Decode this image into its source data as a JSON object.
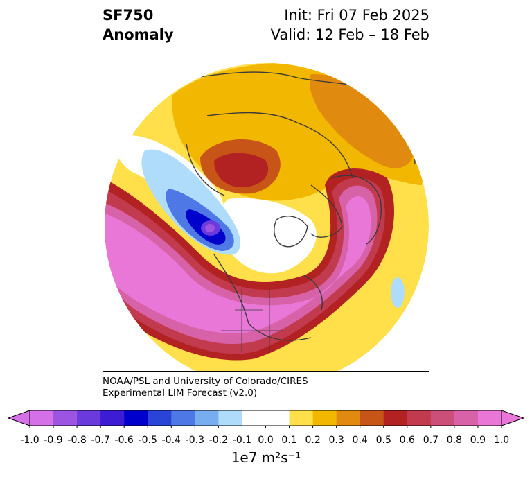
{
  "title": {
    "left_line1": "SF750",
    "left_line2": "Anomaly",
    "right_line1": "Init: Fri 07 Feb 2025",
    "right_line2": "Valid: 12 Feb – 18 Feb"
  },
  "credit": {
    "line1": "NOAA/PSL and University of Colorado/CIRES",
    "line2": "Experimental LIM Forecast (v2.0)"
  },
  "colorbar": {
    "unit_label": "1e7 m²s⁻¹",
    "ticks": [
      "-1.0",
      "-0.9",
      "-0.8",
      "-0.7",
      "-0.6",
      "-0.5",
      "-0.4",
      "-0.3",
      "-0.2",
      "-0.1",
      "0.0",
      "0.1",
      "0.2",
      "0.3",
      "0.4",
      "0.5",
      "0.6",
      "0.7",
      "0.8",
      "0.9",
      "1.0"
    ],
    "colors": [
      "#d670e8",
      "#9b55e0",
      "#6a3adc",
      "#3c1dd4",
      "#0000cc",
      "#2a44d8",
      "#4d78e6",
      "#78aef0",
      "#aedcfa",
      "#ffffff",
      "#ffffff",
      "#ffe04a",
      "#f2b700",
      "#e08a10",
      "#c85518",
      "#b22222",
      "#c23a4e",
      "#cc4f7a",
      "#d862a8",
      "#e877d8"
    ]
  },
  "map": {
    "projection": "north-polar-stereographic",
    "coastline_color": "#3a3a3a",
    "negative_color": "#3c1dd4",
    "positive_color": "#e877d8"
  }
}
